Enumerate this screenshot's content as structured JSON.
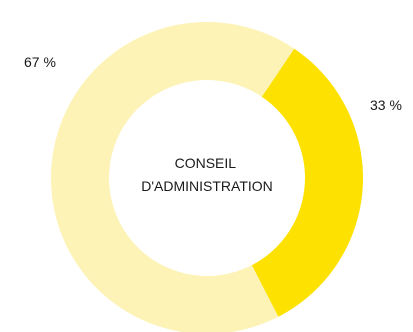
{
  "chart_data": {
    "type": "pie",
    "variant": "donut",
    "center_label": [
      "CONSEIL",
      "D'ADMINISTRATION"
    ],
    "slices": [
      {
        "value": 33,
        "label": "33 %",
        "color": "#FDE100"
      },
      {
        "value": 67,
        "label": "67 %",
        "color": "#FDF3B6"
      }
    ],
    "legend": false
  }
}
